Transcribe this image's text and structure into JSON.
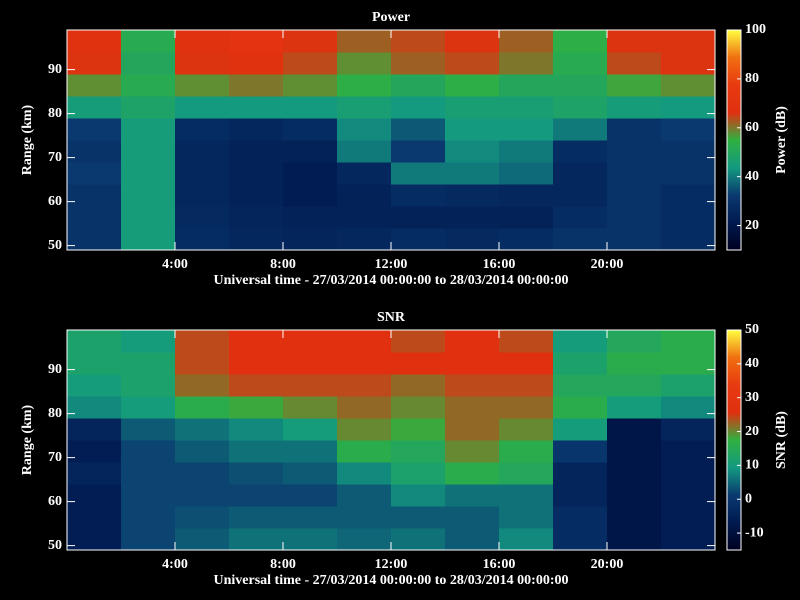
{
  "chart_data": [
    {
      "type": "heatmap",
      "title": "Power",
      "xlabel": "Universal time - 27/03/2014 00:00:00 to 28/03/2014 00:00:00",
      "ylabel": "Range (km)",
      "zlabel": "Power (dB)",
      "x": [
        1,
        3,
        5,
        7,
        9,
        11,
        13,
        15,
        17,
        19,
        21,
        23
      ],
      "y": [
        51.5,
        56.5,
        61.5,
        66.5,
        71.5,
        76.5,
        81.5,
        86.5,
        91.5,
        96.5
      ],
      "values": [
        [
          30,
          45,
          28,
          26,
          25,
          26,
          28,
          27,
          28,
          30,
          30,
          28
        ],
        [
          30,
          45,
          27,
          25,
          24,
          24,
          24,
          24,
          24,
          28,
          30,
          28
        ],
        [
          30,
          45,
          26,
          24,
          22,
          24,
          28,
          27,
          26,
          26,
          30,
          28
        ],
        [
          32,
          45,
          26,
          24,
          22,
          26,
          40,
          40,
          38,
          26,
          30,
          30
        ],
        [
          30,
          45,
          26,
          24,
          24,
          40,
          32,
          42,
          40,
          28,
          30,
          30
        ],
        [
          32,
          45,
          28,
          26,
          28,
          42,
          36,
          44,
          44,
          40,
          30,
          32
        ],
        [
          45,
          48,
          44,
          44,
          44,
          46,
          44,
          46,
          46,
          48,
          45,
          44
        ],
        [
          58,
          52,
          58,
          60,
          58,
          54,
          50,
          54,
          50,
          50,
          56,
          58
        ],
        [
          66,
          50,
          66,
          68,
          64,
          58,
          62,
          64,
          60,
          52,
          64,
          66
        ],
        [
          68,
          52,
          68,
          70,
          66,
          62,
          64,
          66,
          62,
          54,
          66,
          66
        ]
      ],
      "xlim": [
        0,
        24
      ],
      "xticks": [
        {
          "value": 4,
          "label": "4:00"
        },
        {
          "value": 8,
          "label": "8:00"
        },
        {
          "value": 12,
          "label": "12:00"
        },
        {
          "value": 16,
          "label": "16:00"
        },
        {
          "value": 20,
          "label": "20:00"
        }
      ],
      "ylim": [
        49,
        99
      ],
      "yticks": [
        50,
        60,
        70,
        80,
        90
      ],
      "zlim": [
        10,
        100
      ],
      "zticks": [
        20,
        40,
        60,
        80,
        100
      ],
      "colormap": [
        "#000020",
        "#001a50",
        "#0a3a70",
        "#139a80",
        "#30b040",
        "#e03010",
        "#e83a10",
        "#f07010",
        "#ffff40"
      ]
    },
    {
      "type": "heatmap",
      "title": "SNR",
      "xlabel": "Universal time - 27/03/2014 00:00:00 to 28/03/2014 00:00:00",
      "ylabel": "Range (km)",
      "zlabel": "SNR (dB)",
      "x": [
        1,
        3,
        5,
        7,
        9,
        11,
        13,
        15,
        17,
        19,
        21,
        23
      ],
      "y": [
        51.5,
        56.5,
        61.5,
        66.5,
        71.5,
        76.5,
        81.5,
        86.5,
        91.5,
        96.5
      ],
      "values": [
        [
          -6,
          2,
          4,
          6,
          6,
          5,
          6,
          4,
          8,
          -2,
          -8,
          -6
        ],
        [
          -6,
          2,
          3,
          4,
          4,
          4,
          4,
          4,
          6,
          -2,
          -8,
          -6
        ],
        [
          -6,
          2,
          2,
          2,
          2,
          4,
          8,
          6,
          6,
          -4,
          -8,
          -6
        ],
        [
          -4,
          2,
          2,
          3,
          4,
          8,
          12,
          16,
          14,
          -4,
          -8,
          -6
        ],
        [
          -6,
          2,
          4,
          6,
          6,
          16,
          14,
          20,
          16,
          0,
          -8,
          -6
        ],
        [
          -4,
          4,
          6,
          8,
          10,
          20,
          18,
          22,
          20,
          10,
          -8,
          -4
        ],
        [
          8,
          10,
          16,
          18,
          20,
          22,
          20,
          22,
          22,
          16,
          10,
          8
        ],
        [
          10,
          12,
          22,
          24,
          24,
          24,
          22,
          24,
          24,
          14,
          14,
          12
        ],
        [
          12,
          12,
          24,
          26,
          26,
          26,
          26,
          26,
          26,
          12,
          16,
          16
        ],
        [
          12,
          10,
          24,
          26,
          26,
          26,
          24,
          26,
          24,
          10,
          14,
          16
        ]
      ],
      "xlim": [
        0,
        24
      ],
      "xticks": [
        {
          "value": 4,
          "label": "4:00"
        },
        {
          "value": 8,
          "label": "8:00"
        },
        {
          "value": 12,
          "label": "12:00"
        },
        {
          "value": 16,
          "label": "16:00"
        },
        {
          "value": 20,
          "label": "20:00"
        }
      ],
      "ylim": [
        49,
        99
      ],
      "yticks": [
        50,
        60,
        70,
        80,
        90
      ],
      "zlim": [
        -15,
        50
      ],
      "zticks": [
        -10,
        0,
        10,
        20,
        30,
        40,
        50
      ],
      "colormap": [
        "#000020",
        "#001a50",
        "#0a3a70",
        "#139a80",
        "#30b040",
        "#e03010",
        "#e83a10",
        "#f07010",
        "#ffff40"
      ]
    }
  ]
}
